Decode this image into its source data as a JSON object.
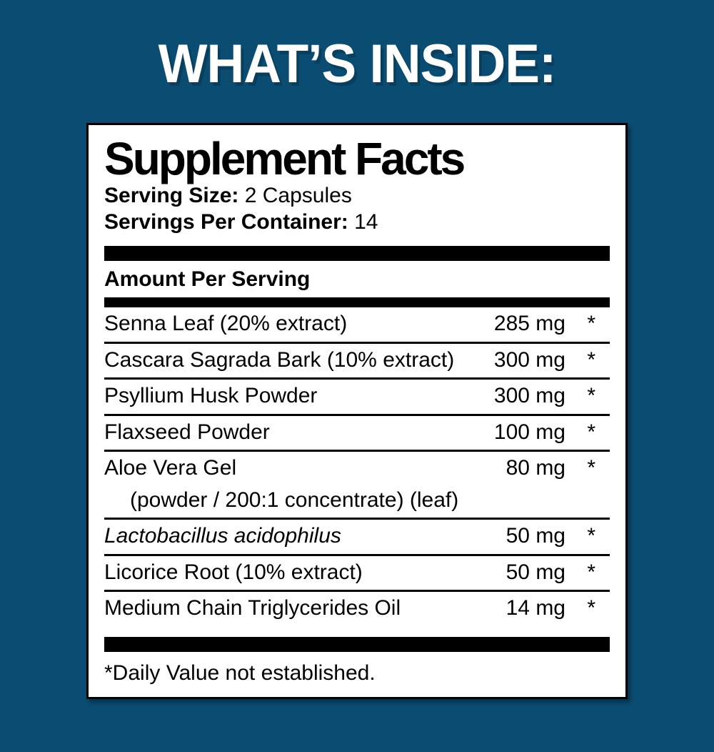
{
  "colors": {
    "background": "#0b4c72",
    "heading_text": "#ffffff",
    "panel_background": "#ffffff",
    "panel_text": "#000000"
  },
  "page": {
    "heading": "WHAT’S INSIDE:"
  },
  "supplement_facts": {
    "title": "Supplement Facts",
    "serving_size_label": "Serving Size:",
    "serving_size_value": " 2 Capsules",
    "servings_per_container_label": "Servings Per Container:",
    "servings_per_container_value": " 14",
    "amount_per_serving_header": "Amount Per Serving",
    "rows": [
      {
        "name": "Senna Leaf (20% extract)",
        "amount": "285 mg",
        "daily_value": "*"
      },
      {
        "name": "Cascara Sagrada Bark (10% extract)",
        "amount": "300 mg",
        "daily_value": "*"
      },
      {
        "name": "Psyllium Husk Powder",
        "amount": "300 mg",
        "daily_value": "*"
      },
      {
        "name": "Flaxseed Powder",
        "amount": "100 mg",
        "daily_value": "*"
      },
      {
        "name": "Aloe Vera Gel",
        "note": "(powder / 200:1 concentrate) (leaf)",
        "amount": "80 mg",
        "daily_value": "*"
      },
      {
        "name": "Lactobacillus acidophilus",
        "amount": "50 mg",
        "daily_value": "*"
      },
      {
        "name": "Licorice Root (10% extract)",
        "amount": "50 mg",
        "daily_value": "*"
      },
      {
        "name": "Medium Chain Triglycerides Oil",
        "amount": "14 mg",
        "daily_value": "*"
      }
    ],
    "footnote": "*Daily Value not established."
  }
}
